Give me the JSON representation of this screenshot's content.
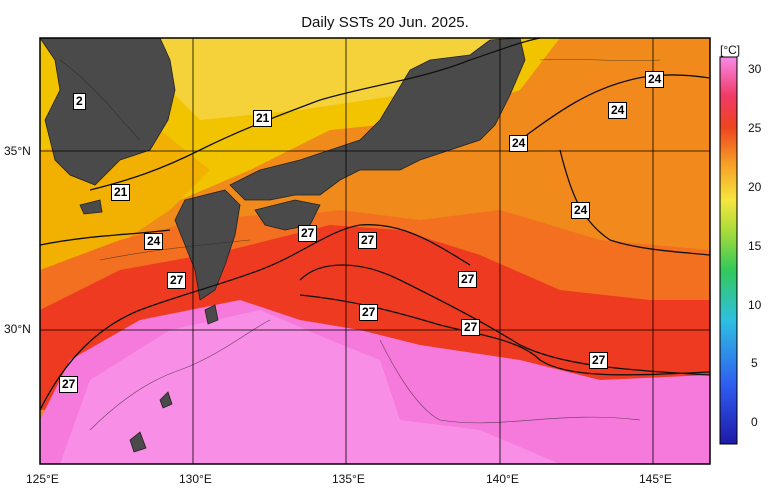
{
  "title": "Daily SSTs 20 Jun. 2025.",
  "x_ticks": [
    "125°E",
    "130°E",
    "135°E",
    "140°E",
    "145°E"
  ],
  "y_ticks": [
    "35°N",
    "30°N"
  ],
  "colorbar": {
    "unit": "[°C]",
    "ticks": [
      "30",
      "25",
      "20",
      "15",
      "10",
      "5",
      "0"
    ],
    "range": [
      -2,
      31
    ]
  },
  "contour_labels": [
    "2",
    "21",
    "21",
    "24",
    "24",
    "24",
    "24",
    "24",
    "27",
    "27",
    "27",
    "27",
    "27",
    "27",
    "27",
    "27"
  ],
  "colors": {
    "land": "#4a4a4a",
    "sst_cold": "#f2c400",
    "sst_mid": "#f08a1a",
    "sst_warm": "#ee3a20",
    "sst_hot": "#f57adc"
  }
}
